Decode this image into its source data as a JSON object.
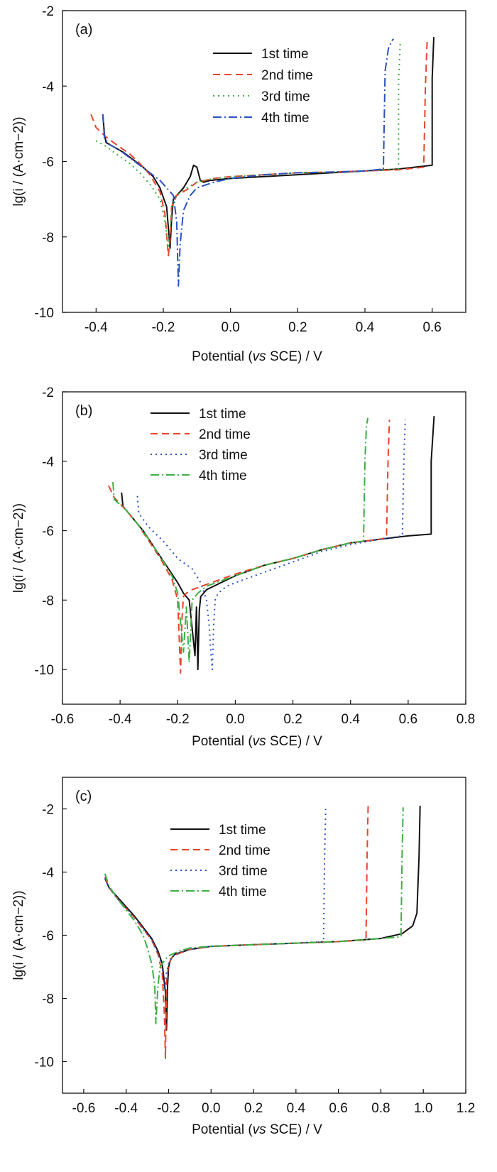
{
  "figure": {
    "series_styles": [
      {
        "color": "#111111",
        "dash": ""
      },
      {
        "color": "#e8452c",
        "dash": "10 6"
      },
      {
        "color": "#3cb043",
        "dash": "2 5"
      },
      {
        "color": "#2a52be",
        "dash": "12 4 2 4"
      }
    ]
  },
  "chart_data": [
    {
      "type": "line",
      "panel_label": "(a)",
      "xlabel_prefix": "Potential (",
      "xlabel_italic": "vs",
      "xlabel_suffix": " SCE) / V",
      "ylabel": "lg(i / (A·cm−2))",
      "xlim": [
        -0.5,
        0.7
      ],
      "ylim": [
        -10,
        -2
      ],
      "xticks": [
        -0.4,
        -0.2,
        0.0,
        0.2,
        0.4,
        0.6
      ],
      "xtick_labels": [
        "-0.4",
        "-0.2",
        "0.0",
        "0.2",
        "0.4",
        "0.6"
      ],
      "yticks": [
        -10,
        -8,
        -6,
        -4,
        -2
      ],
      "ytick_labels": [
        "-10",
        "-8",
        "-6",
        "-4",
        "-2"
      ],
      "legend_position": "top-center",
      "series": [
        {
          "name": "1st time",
          "color": "#111111",
          "x": [
            -0.38,
            -0.375,
            -0.37,
            -0.35,
            -0.32,
            -0.29,
            -0.26,
            -0.23,
            -0.21,
            -0.19,
            -0.18,
            -0.175,
            -0.17,
            -0.16,
            -0.14,
            -0.12,
            -0.11,
            -0.1,
            -0.09,
            -0.08,
            -0.06,
            0.0,
            0.1,
            0.2,
            0.3,
            0.4,
            0.5,
            0.6,
            0.6,
            0.605
          ],
          "y": [
            -4.75,
            -5.3,
            -5.5,
            -5.6,
            -5.75,
            -5.95,
            -6.15,
            -6.4,
            -6.7,
            -7.2,
            -8.3,
            -7.5,
            -7.0,
            -6.9,
            -6.7,
            -6.4,
            -6.1,
            -6.15,
            -6.5,
            -6.55,
            -6.5,
            -6.45,
            -6.4,
            -6.35,
            -6.3,
            -6.25,
            -6.2,
            -6.1,
            -3.8,
            -2.7
          ]
        },
        {
          "name": "2nd time",
          "color": "#e8452c",
          "x": [
            -0.415,
            -0.4,
            -0.37,
            -0.34,
            -0.3,
            -0.27,
            -0.24,
            -0.21,
            -0.195,
            -0.185,
            -0.18,
            -0.175,
            -0.16,
            -0.13,
            -0.1,
            -0.05,
            0.0,
            0.1,
            0.2,
            0.3,
            0.4,
            0.5,
            0.575,
            0.58,
            0.585
          ],
          "y": [
            -4.75,
            -5.1,
            -5.35,
            -5.55,
            -5.8,
            -6.05,
            -6.35,
            -6.8,
            -7.4,
            -8.5,
            -8.1,
            -7.2,
            -6.9,
            -6.75,
            -6.55,
            -6.45,
            -6.4,
            -6.35,
            -6.3,
            -6.28,
            -6.25,
            -6.22,
            -6.15,
            -4.0,
            -2.8
          ]
        },
        {
          "name": "3rd time",
          "color": "#3cb043",
          "x": [
            -0.4,
            -0.37,
            -0.34,
            -0.3,
            -0.27,
            -0.24,
            -0.21,
            -0.195,
            -0.185,
            -0.18,
            -0.175,
            -0.16,
            -0.13,
            -0.1,
            -0.05,
            0.0,
            0.1,
            0.2,
            0.3,
            0.4,
            0.5,
            0.5,
            0.505
          ],
          "y": [
            -5.45,
            -5.6,
            -5.8,
            -6.05,
            -6.3,
            -6.6,
            -7.0,
            -7.6,
            -8.3,
            -7.8,
            -7.2,
            -6.9,
            -6.7,
            -6.55,
            -6.45,
            -6.4,
            -6.35,
            -6.3,
            -6.28,
            -6.25,
            -6.2,
            -3.9,
            -2.85
          ]
        },
        {
          "name": "4th time",
          "color": "#2a52be",
          "x": [
            -0.38,
            -0.375,
            -0.36,
            -0.33,
            -0.3,
            -0.27,
            -0.24,
            -0.21,
            -0.19,
            -0.17,
            -0.16,
            -0.155,
            -0.15,
            -0.14,
            -0.12,
            -0.1,
            -0.05,
            0.0,
            0.1,
            0.2,
            0.3,
            0.4,
            0.455,
            0.46,
            0.47,
            0.48,
            0.485
          ],
          "y": [
            -4.75,
            -5.4,
            -5.55,
            -5.7,
            -5.9,
            -6.1,
            -6.3,
            -6.5,
            -6.7,
            -6.9,
            -7.6,
            -9.3,
            -8.2,
            -7.3,
            -6.9,
            -6.7,
            -6.55,
            -6.45,
            -6.35,
            -6.3,
            -6.28,
            -6.25,
            -6.2,
            -3.6,
            -3.0,
            -2.8,
            -2.75
          ]
        }
      ]
    },
    {
      "type": "line",
      "panel_label": "(b)",
      "xlabel_prefix": "Potential (",
      "xlabel_italic": "vs",
      "xlabel_suffix": " SCE) / V",
      "ylabel": "lg(i / (A·cm−2))",
      "xlim": [
        -0.6,
        0.8
      ],
      "ylim": [
        -11,
        -2
      ],
      "xticks": [
        -0.6,
        -0.4,
        -0.2,
        0.0,
        0.2,
        0.4,
        0.6,
        0.8
      ],
      "xtick_labels": [
        "-0.6",
        "-0.4",
        "-0.2",
        "0.0",
        "0.2",
        "0.4",
        "0.6",
        "0.8"
      ],
      "yticks": [
        -10,
        -8,
        -6,
        -4,
        -2
      ],
      "ytick_labels": [
        "-10",
        "-8",
        "-6",
        "-4",
        "-2"
      ],
      "legend_position": "top-left",
      "series": [
        {
          "name": "1st time",
          "color": "#111111",
          "x": [
            -0.395,
            -0.39,
            -0.36,
            -0.32,
            -0.28,
            -0.24,
            -0.2,
            -0.18,
            -0.16,
            -0.14,
            -0.135,
            -0.13,
            -0.125,
            -0.12,
            -0.1,
            -0.05,
            0.0,
            0.1,
            0.2,
            0.3,
            0.4,
            0.5,
            0.6,
            0.68,
            0.68,
            0.69
          ],
          "y": [
            -4.9,
            -5.3,
            -5.6,
            -6.0,
            -6.5,
            -7.0,
            -7.5,
            -7.8,
            -8.0,
            -9.6,
            -8.2,
            -10.0,
            -8.3,
            -7.9,
            -7.7,
            -7.5,
            -7.3,
            -7.0,
            -6.8,
            -6.55,
            -6.35,
            -6.25,
            -6.15,
            -6.1,
            -4.0,
            -2.7
          ]
        },
        {
          "name": "2nd time",
          "color": "#e8452c",
          "x": [
            -0.44,
            -0.42,
            -0.38,
            -0.34,
            -0.3,
            -0.26,
            -0.22,
            -0.2,
            -0.19,
            -0.185,
            -0.18,
            -0.17,
            -0.15,
            -0.1,
            -0.05,
            0.0,
            0.1,
            0.2,
            0.3,
            0.4,
            0.5,
            0.525,
            0.53,
            0.535
          ],
          "y": [
            -4.7,
            -5.05,
            -5.4,
            -5.8,
            -6.3,
            -6.8,
            -7.4,
            -8.0,
            -10.1,
            -8.5,
            -7.9,
            -7.8,
            -7.7,
            -7.55,
            -7.4,
            -7.25,
            -7.0,
            -6.8,
            -6.55,
            -6.35,
            -6.25,
            -6.2,
            -4.0,
            -2.8
          ]
        },
        {
          "name": "3rd time",
          "color": "#2a52be",
          "x": [
            -0.34,
            -0.335,
            -0.3,
            -0.25,
            -0.2,
            -0.15,
            -0.12,
            -0.1,
            -0.09,
            -0.085,
            -0.08,
            -0.075,
            -0.07,
            -0.06,
            -0.03,
            0.0,
            0.1,
            0.2,
            0.3,
            0.4,
            0.5,
            0.58,
            0.585,
            0.59
          ],
          "y": [
            -5.0,
            -5.5,
            -5.9,
            -6.3,
            -6.8,
            -7.1,
            -7.5,
            -8.0,
            -8.8,
            -9.5,
            -10.0,
            -8.7,
            -8.0,
            -7.8,
            -7.6,
            -7.5,
            -7.2,
            -6.9,
            -6.6,
            -6.4,
            -6.25,
            -6.15,
            -4.0,
            -2.8
          ]
        },
        {
          "name": "4th time",
          "color": "#3cb043",
          "x": [
            -0.425,
            -0.42,
            -0.38,
            -0.34,
            -0.3,
            -0.26,
            -0.22,
            -0.2,
            -0.18,
            -0.17,
            -0.16,
            -0.15,
            -0.13,
            -0.1,
            -0.05,
            0.0,
            0.1,
            0.2,
            0.3,
            0.4,
            0.445,
            0.45,
            0.455,
            0.46
          ],
          "y": [
            -4.6,
            -5.1,
            -5.4,
            -5.8,
            -6.25,
            -6.75,
            -7.3,
            -7.8,
            -9.5,
            -8.2,
            -9.8,
            -8.0,
            -7.8,
            -7.6,
            -7.45,
            -7.3,
            -7.0,
            -6.8,
            -6.55,
            -6.35,
            -6.3,
            -4.0,
            -3.0,
            -2.75
          ]
        }
      ]
    },
    {
      "type": "line",
      "panel_label": "(c)",
      "xlabel_prefix": "Potential (",
      "xlabel_italic": "vs",
      "xlabel_suffix": " SCE) / V",
      "ylabel": "lg(i / (A·cm−2))",
      "xlim": [
        -0.7,
        1.2
      ],
      "ylim": [
        -11,
        -1
      ],
      "xticks": [
        -0.6,
        -0.4,
        -0.2,
        0.0,
        0.2,
        0.4,
        0.6,
        0.8,
        1.0,
        1.2
      ],
      "xtick_labels": [
        "-0.6",
        "-0.4",
        "-0.2",
        "0.0",
        "0.2",
        "0.4",
        "0.6",
        "0.8",
        "1.0",
        "1.2"
      ],
      "yticks": [
        -10,
        -8,
        -6,
        -4,
        -2
      ],
      "ytick_labels": [
        "-10",
        "-8",
        "-6",
        "-4",
        "-2"
      ],
      "legend_position": "top-center",
      "series": [
        {
          "name": "1st time",
          "color": "#111111",
          "x": [
            -0.5,
            -0.48,
            -0.44,
            -0.4,
            -0.36,
            -0.32,
            -0.28,
            -0.25,
            -0.23,
            -0.215,
            -0.21,
            -0.205,
            -0.2,
            -0.19,
            -0.17,
            -0.1,
            0.0,
            0.2,
            0.4,
            0.6,
            0.8,
            0.9,
            0.95,
            0.97,
            0.98,
            0.985
          ],
          "y": [
            -4.2,
            -4.5,
            -4.8,
            -5.1,
            -5.4,
            -5.75,
            -6.1,
            -6.5,
            -6.9,
            -7.8,
            -9.0,
            -7.6,
            -7.0,
            -6.75,
            -6.6,
            -6.45,
            -6.35,
            -6.3,
            -6.25,
            -6.2,
            -6.1,
            -5.95,
            -5.7,
            -5.3,
            -3.5,
            -1.9
          ]
        },
        {
          "name": "2nd time",
          "color": "#e8452c",
          "x": [
            -0.5,
            -0.48,
            -0.44,
            -0.4,
            -0.36,
            -0.32,
            -0.28,
            -0.25,
            -0.23,
            -0.22,
            -0.215,
            -0.21,
            -0.2,
            -0.18,
            -0.1,
            0.0,
            0.2,
            0.4,
            0.6,
            0.73,
            0.735,
            0.74
          ],
          "y": [
            -4.15,
            -4.5,
            -4.85,
            -5.15,
            -5.45,
            -5.8,
            -6.15,
            -6.6,
            -7.2,
            -8.5,
            -9.9,
            -7.5,
            -6.9,
            -6.65,
            -6.45,
            -6.35,
            -6.3,
            -6.25,
            -6.2,
            -6.15,
            -3.5,
            -1.9
          ]
        },
        {
          "name": "3rd time",
          "color": "#2a52be",
          "x": [
            -0.5,
            -0.48,
            -0.44,
            -0.4,
            -0.36,
            -0.32,
            -0.28,
            -0.25,
            -0.23,
            -0.22,
            -0.21,
            -0.2,
            -0.18,
            -0.1,
            0.0,
            0.2,
            0.4,
            0.53,
            0.535,
            0.54
          ],
          "y": [
            -4.2,
            -4.5,
            -4.85,
            -5.15,
            -5.45,
            -5.8,
            -6.15,
            -6.55,
            -7.0,
            -7.7,
            -7.2,
            -6.9,
            -6.65,
            -6.45,
            -6.35,
            -6.3,
            -6.25,
            -6.2,
            -3.5,
            -2.0
          ]
        },
        {
          "name": "4th time",
          "color": "#3cb043",
          "x": [
            -0.5,
            -0.48,
            -0.44,
            -0.4,
            -0.36,
            -0.32,
            -0.3,
            -0.28,
            -0.265,
            -0.26,
            -0.25,
            -0.24,
            -0.22,
            -0.2,
            -0.15,
            -0.1,
            0.0,
            0.2,
            0.4,
            0.6,
            0.8,
            0.895,
            0.9,
            0.905
          ],
          "y": [
            -4.05,
            -4.45,
            -4.85,
            -5.2,
            -5.55,
            -6.0,
            -6.4,
            -6.9,
            -7.6,
            -8.8,
            -7.6,
            -7.0,
            -6.8,
            -6.65,
            -6.5,
            -6.4,
            -6.35,
            -6.3,
            -6.25,
            -6.2,
            -6.1,
            -6.05,
            -3.5,
            -1.95
          ]
        }
      ]
    }
  ]
}
